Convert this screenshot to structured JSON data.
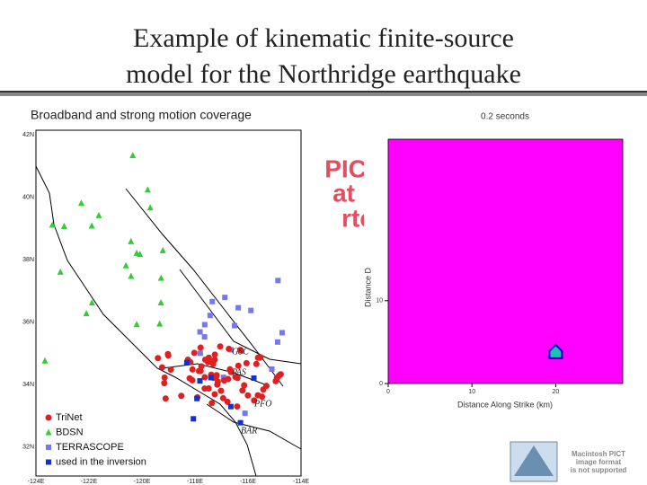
{
  "header": {
    "title_lines": [
      "Example of kinematic finite-source",
      "model for the Northridge earthquake"
    ]
  },
  "map": {
    "title": "Broadband and strong motion coverage",
    "lat_labels": [
      "42N",
      "40N",
      "38N",
      "36N",
      "34N",
      "32N"
    ],
    "lon_labels": [
      "-124E",
      "-122E",
      "-120E",
      "-118E",
      "-116E",
      "-114E"
    ],
    "station_labels": [
      "GSC",
      "PAS",
      "PFO",
      "BAR"
    ],
    "legend": [
      "TriNet",
      "BDSN",
      "TERRASCOPE",
      "used in the inversion"
    ]
  },
  "broken_image": {
    "fragments": [
      "PICT",
      "at",
      "rted"
    ]
  },
  "logo": {
    "lines": [
      "Macintosh PICT",
      "image format",
      "is not supported"
    ]
  },
  "chart_data": {
    "type": "scatter",
    "title": "0.2 seconds",
    "x_label": "Distance Along Strike (km)",
    "y_label": "Distance D",
    "x": [
      20
    ],
    "values": [
      3.7
    ],
    "color": "#20c0b0",
    "xlim": [
      0,
      28
    ],
    "ylim": [
      0,
      29.5
    ],
    "xticks": [
      0,
      10,
      20
    ],
    "yticks": [
      0,
      10
    ]
  }
}
